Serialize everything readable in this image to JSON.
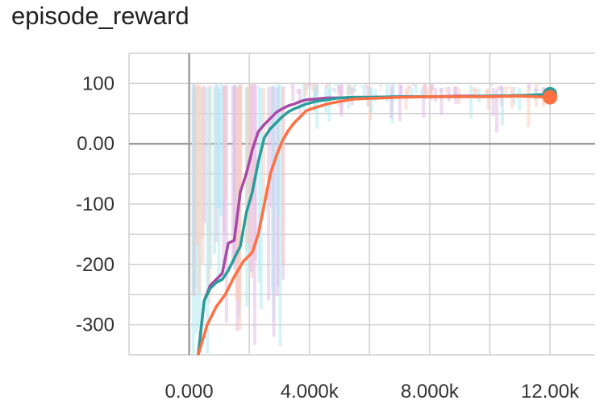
{
  "chart_data": {
    "type": "line",
    "title": "episode_reward",
    "xlabel": "",
    "ylabel": "",
    "xlim": [
      -2000,
      13500
    ],
    "ylim": [
      -350,
      150
    ],
    "x_ticks": [
      {
        "value": 0,
        "label": "0.000"
      },
      {
        "value": 4000,
        "label": "4.000k"
      },
      {
        "value": 8000,
        "label": "8.000k"
      },
      {
        "value": 12000,
        "label": "12.00k"
      }
    ],
    "y_ticks": [
      {
        "value": 100,
        "label": "100"
      },
      {
        "value": 0,
        "label": "0.00"
      },
      {
        "value": -100,
        "label": "-100"
      },
      {
        "value": -200,
        "label": "-200"
      },
      {
        "value": -300,
        "label": "-300"
      }
    ],
    "grid": true,
    "colors": {
      "purple": "#a84aa6",
      "teal": "#2a9d9b",
      "orange": "#ff7043",
      "grid": "#d0d0d0",
      "axis": "#9e9e9e"
    },
    "series": [
      {
        "color": "#a84aa6",
        "x": [
          300,
          500,
          700,
          900,
          1100,
          1300,
          1500,
          1700,
          1900,
          2100,
          2300,
          2500,
          2700,
          2900,
          3100,
          3300,
          3500,
          3700,
          3900,
          4200,
          4600,
          5000,
          5500,
          6000,
          7000,
          8000,
          9000,
          10000,
          11000,
          12000
        ],
        "y": [
          -350,
          -260,
          -235,
          -225,
          -215,
          -165,
          -160,
          -80,
          -50,
          -10,
          20,
          32,
          42,
          52,
          58,
          63,
          66,
          70,
          73,
          74,
          76,
          76,
          77,
          77,
          78,
          78,
          79,
          79,
          80,
          80
        ]
      },
      {
        "color": "#2a9d9b",
        "x": [
          300,
          500,
          700,
          900,
          1100,
          1300,
          1500,
          1700,
          1900,
          2100,
          2300,
          2500,
          2700,
          2900,
          3100,
          3300,
          3500,
          3700,
          3900,
          4200,
          4600,
          5000,
          5500,
          6000,
          7000,
          8000,
          9000,
          10000,
          11000,
          12000
        ],
        "y": [
          -350,
          -260,
          -240,
          -230,
          -225,
          -210,
          -190,
          -170,
          -115,
          -80,
          -30,
          10,
          25,
          35,
          45,
          53,
          58,
          62,
          66,
          70,
          73,
          76,
          77,
          77,
          78,
          78,
          78,
          79,
          80,
          82
        ]
      },
      {
        "color": "#ff7043",
        "x": [
          300,
          600,
          900,
          1200,
          1500,
          1800,
          2100,
          2300,
          2500,
          2700,
          2900,
          3100,
          3300,
          3500,
          3700,
          3900,
          4200,
          4600,
          5000,
          5500,
          6000,
          7000,
          8000,
          9000,
          10000,
          11000,
          12000
        ],
        "y": [
          -350,
          -300,
          -270,
          -250,
          -220,
          -195,
          -180,
          -150,
          -100,
          -50,
          -20,
          5,
          22,
          35,
          45,
          55,
          60,
          66,
          70,
          74,
          75,
          77,
          78,
          78,
          78,
          79,
          77
        ]
      }
    ]
  }
}
